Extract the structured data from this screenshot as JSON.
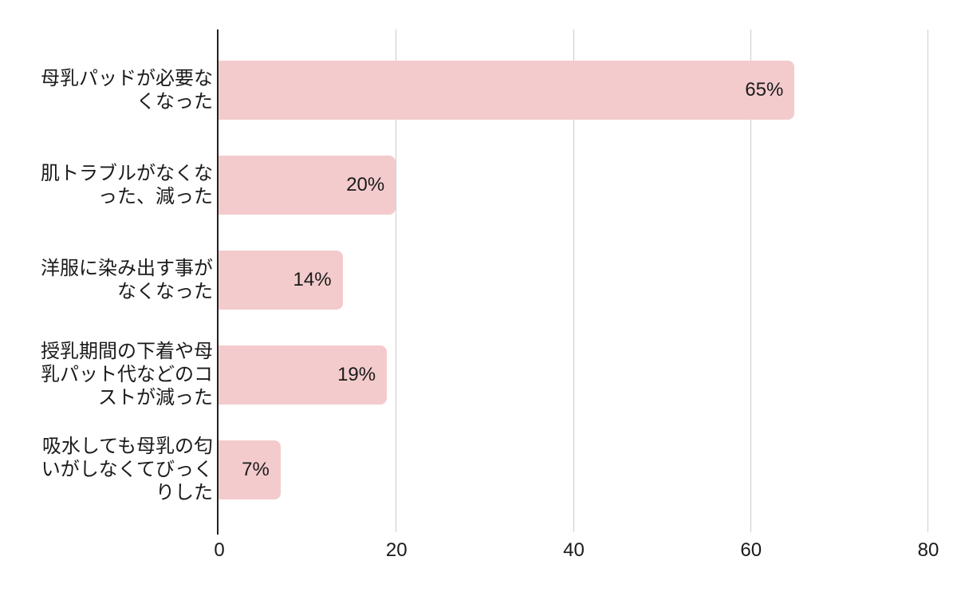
{
  "chart_data": {
    "type": "bar",
    "orientation": "horizontal",
    "title": "",
    "xlabel": "",
    "ylabel": "",
    "legend": "none",
    "grid": true,
    "xlim": [
      0,
      80
    ],
    "x_ticks": [
      "0",
      "20",
      "40",
      "60",
      "80"
    ],
    "x_tick_values": [
      0,
      20,
      40,
      60,
      80
    ],
    "categories": [
      "母乳パッドが必要なくなった",
      "肌トラブルがなくなった、減った",
      "洋服に染み出す事がなくなった",
      "授乳期間の下着や母乳パット代などのコストが減った",
      "吸水しても母乳の匂いがしなくてびっくりした"
    ],
    "categories_wrapped": [
      [
        "母乳パッドが必要な",
        "くなった"
      ],
      [
        "肌トラブルがなくな",
        "った、減った"
      ],
      [
        "洋服に染み出す事が",
        "なくなった"
      ],
      [
        "授乳期間の下着や母",
        "乳パット代などのコ",
        "ストが減った"
      ],
      [
        "吸水しても母乳の匂",
        "いがしなくてびっく",
        "りした"
      ]
    ],
    "values": [
      65,
      20,
      14,
      19,
      7
    ],
    "value_labels": [
      "65%",
      "20%",
      "14%",
      "19%",
      "7%"
    ],
    "colors": {
      "bar_fill": "#f3cbcc",
      "gridline": "#cccccc",
      "axis_line": "#212121",
      "text": "#1a1a1a"
    }
  }
}
